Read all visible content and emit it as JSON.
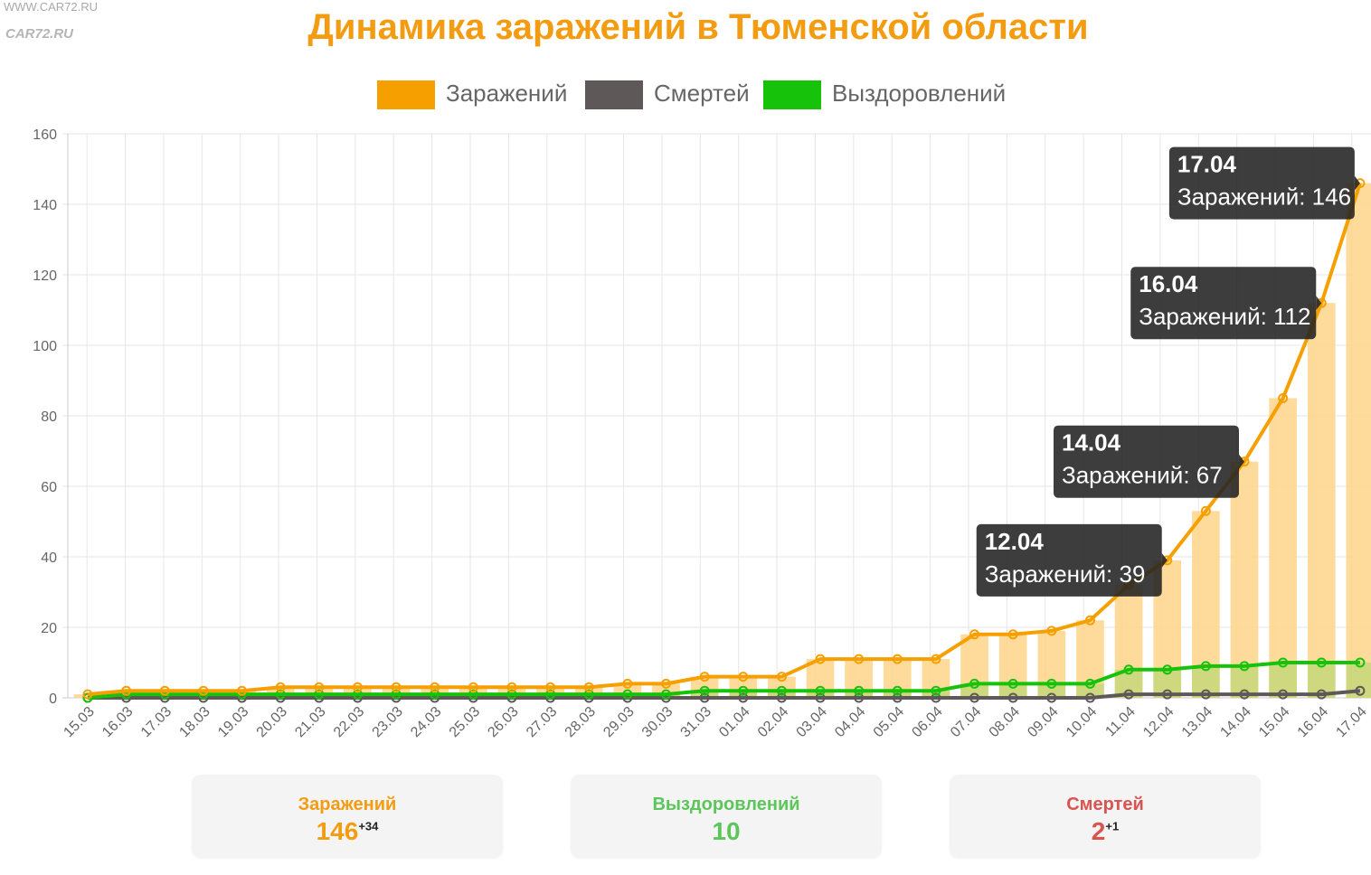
{
  "logo": {
    "url_text": "WWW.CAR72.RU",
    "brand_text": "CAR72.RU"
  },
  "chart_data": {
    "type": "bar",
    "title": "Динамика заражений в Тюменской области",
    "categories": [
      "15.03",
      "16.03",
      "17.03",
      "18.03",
      "19.03",
      "20.03",
      "21.03",
      "22.03",
      "23.03",
      "24.03",
      "25.03",
      "26.03",
      "27.03",
      "28.03",
      "29.03",
      "30.03",
      "31.03",
      "01.04",
      "02.04",
      "03.04",
      "04.04",
      "05.04",
      "06.04",
      "07.04",
      "08.04",
      "09.04",
      "10.04",
      "11.04",
      "12.04",
      "13.04",
      "14.04",
      "15.04",
      "16.04",
      "17.04"
    ],
    "ylim": [
      0,
      160
    ],
    "yticks": [
      0,
      20,
      40,
      60,
      80,
      100,
      120,
      140,
      160
    ],
    "grid": true,
    "legend_position": "top-center",
    "series": [
      {
        "name": "Заражений",
        "color": "#f5a000",
        "bar_color": "#ffd58a",
        "values": [
          1,
          2,
          2,
          2,
          2,
          3,
          3,
          3,
          3,
          3,
          3,
          3,
          3,
          3,
          4,
          4,
          6,
          6,
          6,
          11,
          11,
          11,
          11,
          18,
          18,
          19,
          22,
          32,
          39,
          53,
          67,
          85,
          112,
          146
        ]
      },
      {
        "name": "Смертей",
        "color": "#5f5858",
        "values": [
          0,
          0,
          0,
          0,
          0,
          0,
          0,
          0,
          0,
          0,
          0,
          0,
          0,
          0,
          0,
          0,
          0,
          0,
          0,
          0,
          0,
          0,
          0,
          0,
          0,
          0,
          0,
          1,
          1,
          1,
          1,
          1,
          1,
          2
        ]
      },
      {
        "name": "Выздоровлений",
        "color": "#17c20b",
        "bar_color": "#c6d77a",
        "values": [
          0,
          1,
          1,
          1,
          1,
          1,
          1,
          1,
          1,
          1,
          1,
          1,
          1,
          1,
          1,
          1,
          2,
          2,
          2,
          2,
          2,
          2,
          2,
          4,
          4,
          4,
          4,
          8,
          8,
          9,
          9,
          10,
          10,
          10
        ]
      }
    ],
    "annotations": [
      {
        "date": "17.04",
        "label": "Заражений: 146",
        "index": 33
      },
      {
        "date": "16.04",
        "label": "Заражений: 112",
        "index": 32
      },
      {
        "date": "14.04",
        "label": "Заражений: 67",
        "index": 30
      },
      {
        "date": "12.04",
        "label": "Заражений: 39",
        "index": 28
      }
    ]
  },
  "summary": {
    "infected": {
      "label": "Заражений",
      "value": "146",
      "delta": "+34",
      "color": "#f39c12"
    },
    "recovered": {
      "label": "Выздоровлений",
      "value": "10",
      "color": "#5cc65a"
    },
    "deaths": {
      "label": "Смертей",
      "value": "2",
      "delta": "+1",
      "color": "#d9534f"
    }
  }
}
